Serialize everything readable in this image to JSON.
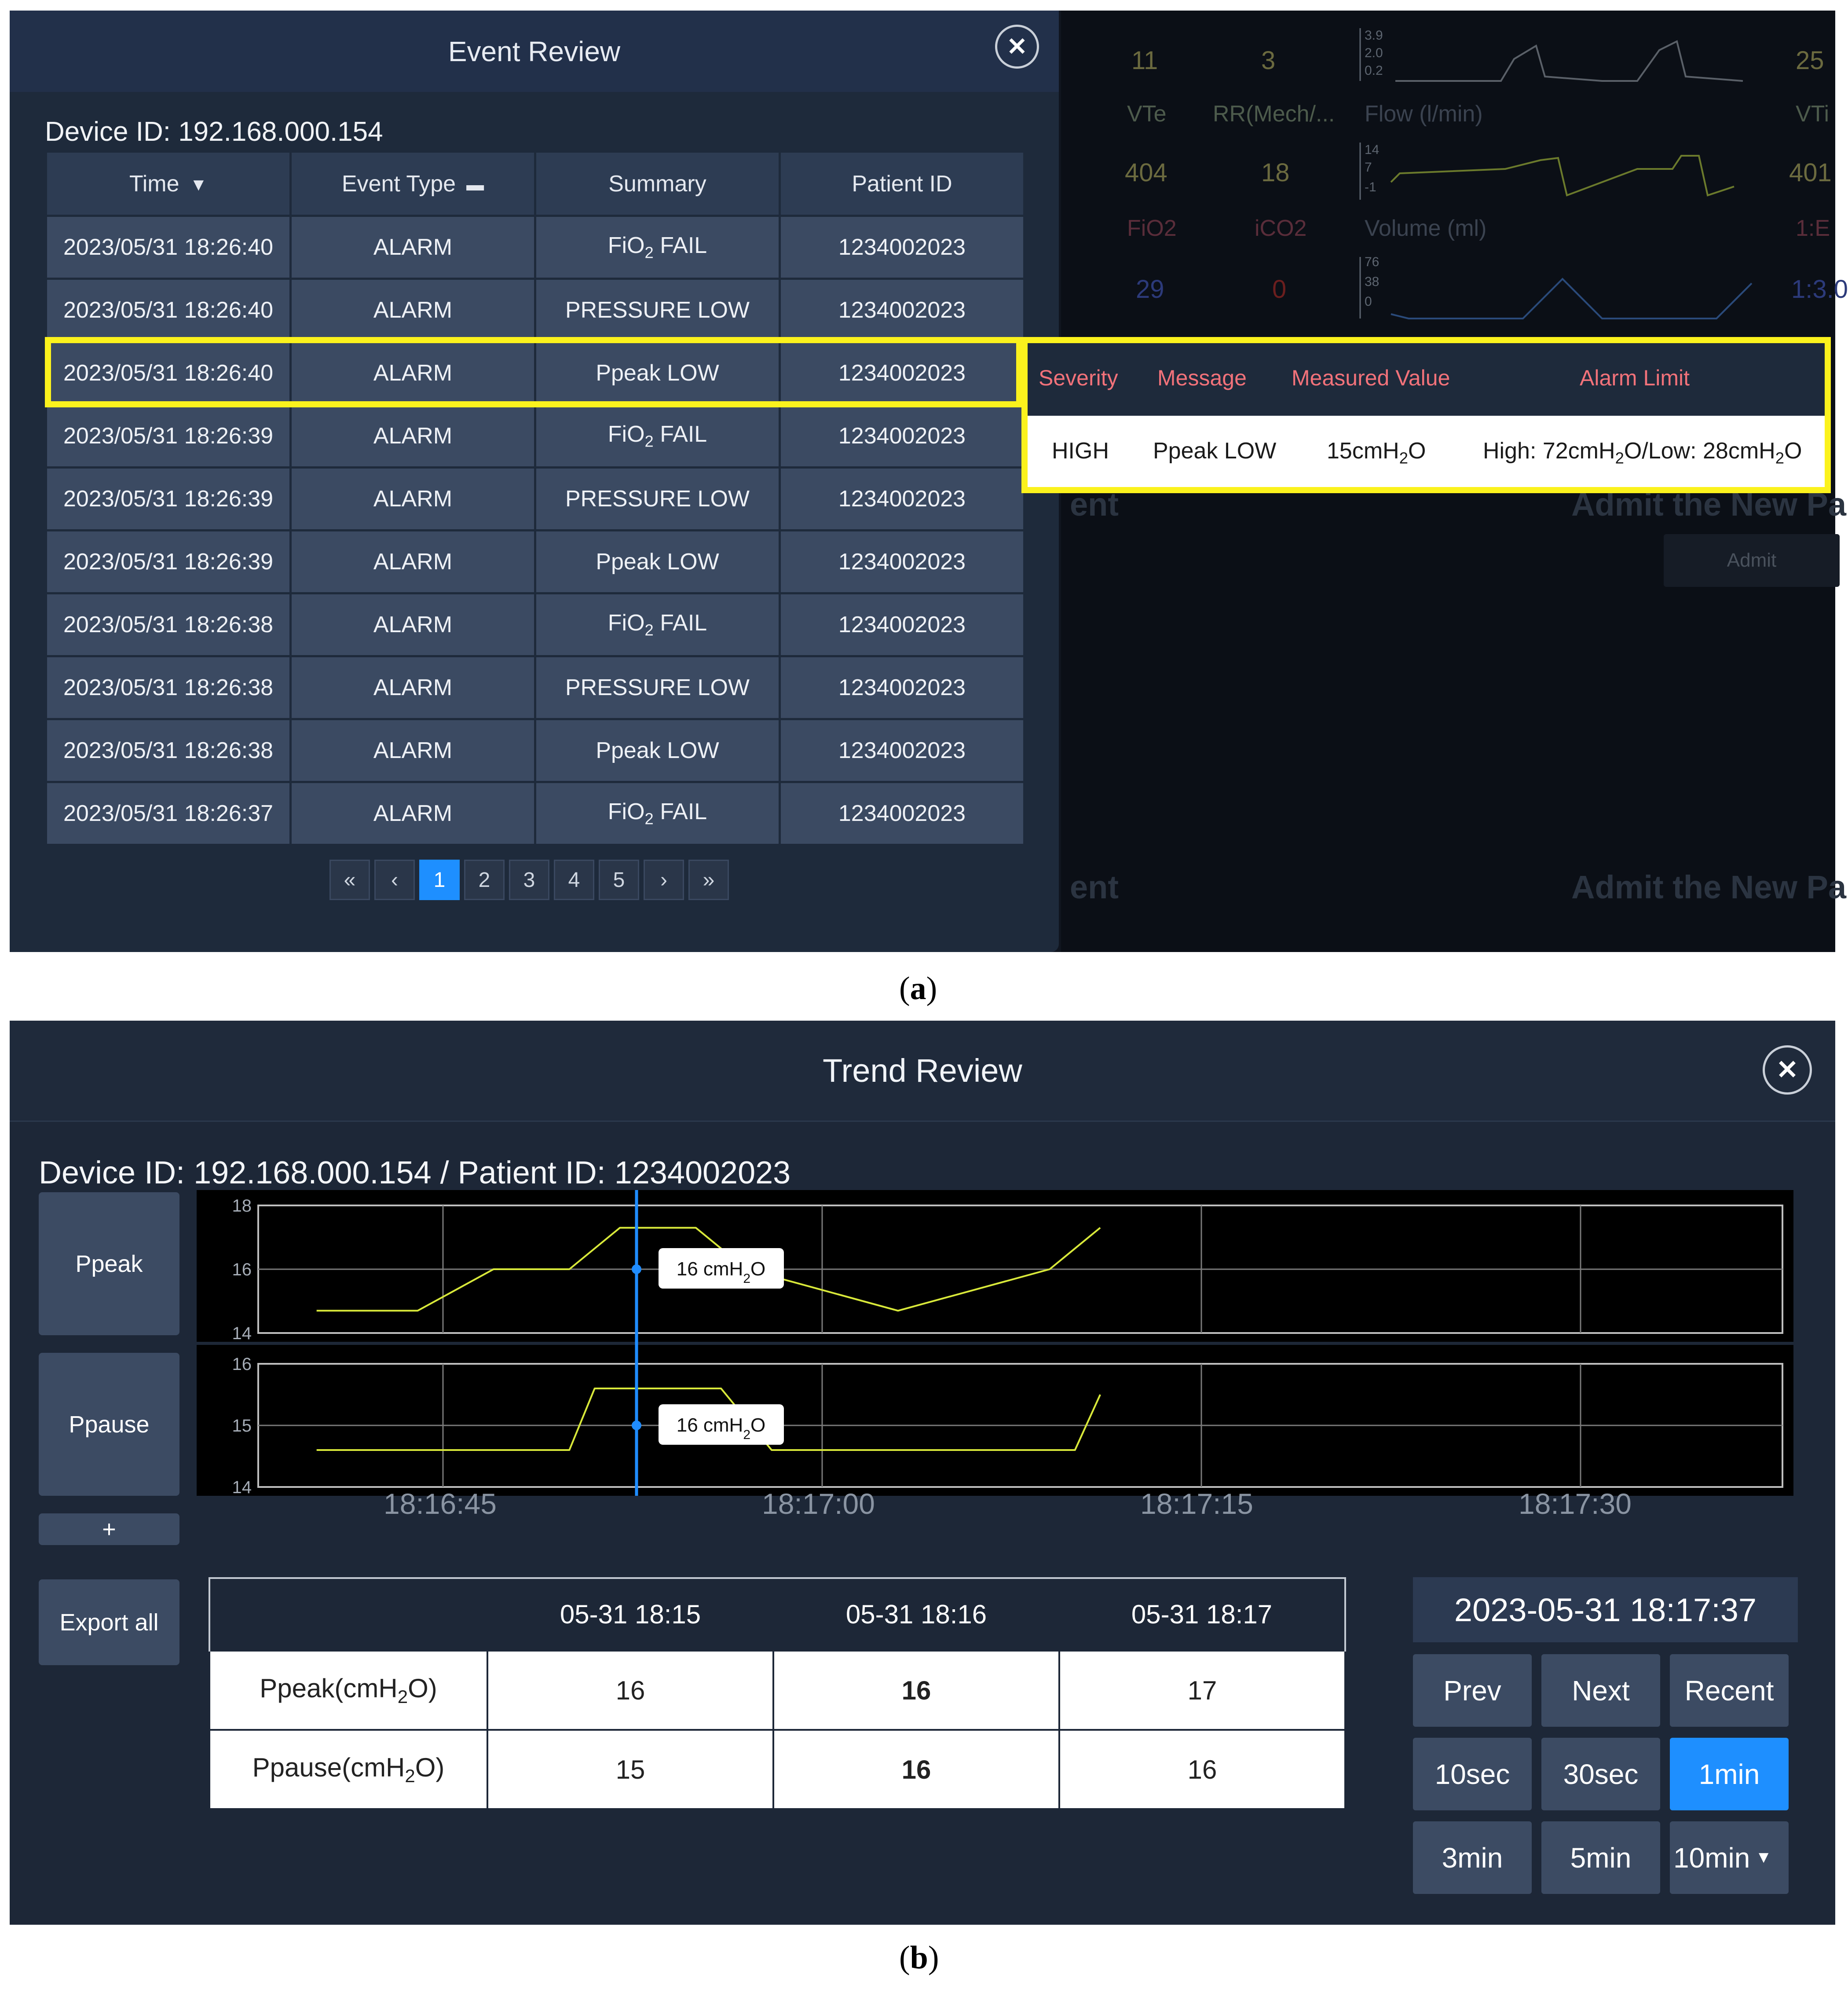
{
  "panel_a": {
    "caption": "(a)",
    "caption_letter": "a",
    "background_monitor": {
      "top_values": [
        "11",
        "3",
        "25"
      ],
      "labels": [
        "VTe",
        "RR(Mech/...",
        "Flow (l/min)",
        "VTi"
      ],
      "values2": [
        "404",
        "18",
        "401"
      ],
      "labels2": [
        "FiO2",
        "iCO2",
        "Volume (ml)",
        "1:E"
      ],
      "values3": [
        "29",
        "0",
        "1:3.0"
      ],
      "scale_top": [
        "3.9",
        "2.0",
        "0.2"
      ],
      "scale_flow": [
        "14",
        "7",
        "-1"
      ],
      "scale_volume": [
        "76",
        "38",
        "0"
      ],
      "ghost_1": "ent",
      "ghost_2": "Admit the New Pa",
      "ghost_3": "ent",
      "ghost_4": "Admit the New Pa",
      "admit_button": "Admit"
    },
    "event_review": {
      "title": "Event Review",
      "device_label": "Device ID: 192.168.000.154",
      "columns": [
        "Time",
        "Event Type",
        "Summary",
        "Patient ID"
      ],
      "rows": [
        {
          "time": "2023/05/31 18:26:40",
          "type": "ALARM",
          "summary": "FiO2 FAIL",
          "patient": "1234002023"
        },
        {
          "time": "2023/05/31 18:26:40",
          "type": "ALARM",
          "summary": "PRESSURE LOW",
          "patient": "1234002023"
        },
        {
          "time": "2023/05/31 18:26:40",
          "type": "ALARM",
          "summary": "Ppeak LOW",
          "patient": "1234002023"
        },
        {
          "time": "2023/05/31 18:26:39",
          "type": "ALARM",
          "summary": "FiO2 FAIL",
          "patient": "1234002023"
        },
        {
          "time": "2023/05/31 18:26:39",
          "type": "ALARM",
          "summary": "PRESSURE LOW",
          "patient": "1234002023"
        },
        {
          "time": "2023/05/31 18:26:39",
          "type": "ALARM",
          "summary": "Ppeak LOW",
          "patient": "1234002023"
        },
        {
          "time": "2023/05/31 18:26:38",
          "type": "ALARM",
          "summary": "FiO2 FAIL",
          "patient": "1234002023"
        },
        {
          "time": "2023/05/31 18:26:38",
          "type": "ALARM",
          "summary": "PRESSURE LOW",
          "patient": "1234002023"
        },
        {
          "time": "2023/05/31 18:26:38",
          "type": "ALARM",
          "summary": "Ppeak LOW",
          "patient": "1234002023"
        },
        {
          "time": "2023/05/31 18:26:37",
          "type": "ALARM",
          "summary": "FiO2 FAIL",
          "patient": "1234002023"
        }
      ],
      "pagination": [
        "«",
        "‹",
        "1",
        "2",
        "3",
        "4",
        "5",
        "›",
        "»"
      ],
      "active_page": "1"
    },
    "detail": {
      "headers": [
        "Severity",
        "Message",
        "Measured Value",
        "Alarm Limit"
      ],
      "severity": "HIGH",
      "message": "Ppeak LOW",
      "measured": "15cmH2O",
      "limit": "High: 72cmH2O/Low: 28cmH2O"
    },
    "colors": {
      "highlight": "#fbf21d",
      "accent": "#1e8fff",
      "detail_header_text": "#f2727a"
    }
  },
  "panel_b": {
    "caption": "(b)",
    "caption_letter": "b",
    "title": "Trend Review",
    "device_label": "Device ID: 192.168.000.154 / Patient ID: 1234002023",
    "side_buttons": {
      "ppeak": "Ppeak",
      "ppause": "Ppause",
      "add": "+",
      "export": "Export all"
    },
    "time_labels": [
      "18:16:45",
      "18:17:00",
      "18:17:15",
      "18:17:30"
    ],
    "table": {
      "headers": [
        "",
        "05-31 18:15",
        "05-31 18:16",
        "05-31 18:17"
      ],
      "rows": [
        {
          "label": "Ppeak(cmH2O)",
          "values": [
            "16",
            "16",
            "17"
          ]
        },
        {
          "label": "Ppause(cmH2O)",
          "values": [
            "15",
            "16",
            "16"
          ]
        }
      ]
    },
    "timestamp": "2023-05-31 18:17:37",
    "controls": [
      "Prev",
      "Next",
      "Recent",
      "10sec",
      "30sec",
      "1min",
      "3min",
      "5min",
      "10min"
    ],
    "active_control": "1min"
  },
  "chart_data": [
    {
      "type": "line",
      "series": [
        {
          "name": "Ppeak",
          "x": [
            "18:16:40",
            "18:16:44",
            "18:16:47",
            "18:16:50",
            "18:16:52",
            "18:16:55",
            "18:16:57",
            "18:17:03",
            "18:17:09",
            "18:17:11"
          ],
          "values": [
            14.7,
            14.7,
            16,
            16,
            17.3,
            17.3,
            16,
            14.7,
            16,
            17.3
          ]
        }
      ],
      "ylim": [
        14,
        18
      ],
      "yticks": [
        18,
        16,
        14
      ],
      "cursor_label": "16 cmH2O",
      "grid": true
    },
    {
      "type": "line",
      "series": [
        {
          "name": "Ppause",
          "x": [
            "18:16:40",
            "18:16:50",
            "18:16:51",
            "18:16:56",
            "18:16:58",
            "18:17:10",
            "18:17:11"
          ],
          "values": [
            14.6,
            14.6,
            15.6,
            15.6,
            14.6,
            14.6,
            15.5
          ]
        }
      ],
      "ylim": [
        14,
        16
      ],
      "yticks": [
        16,
        15,
        14
      ],
      "cursor_label": "16 cmH2O",
      "grid": true
    }
  ]
}
